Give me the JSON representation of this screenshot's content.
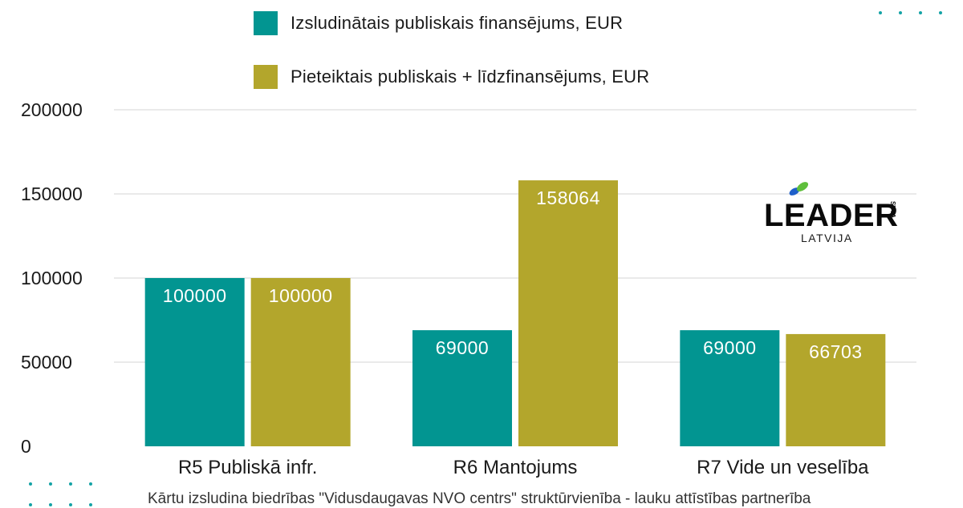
{
  "legend": [
    {
      "label": "Izsludinātais publiskais finansējums, EUR",
      "color": "#029591"
    },
    {
      "label": "Pieteiktais publiskais + līdzfinansējums, EUR",
      "color": "#b3a62c"
    }
  ],
  "logo": {
    "main": "LEADER",
    "sub": "LATVIJA",
    "badge": "SVVA"
  },
  "footnote": "Kārtu izsludina biedrības \"Vidusdaugavas NVO centrs\" struktūrvienība - lauku attīstības partnerība",
  "chart_data": {
    "type": "bar",
    "title": "",
    "xlabel": "",
    "ylabel": "",
    "categories": [
      "R5 Publiskā infr.",
      "R6 Mantojums",
      "R7 Vide un veselība"
    ],
    "series": [
      {
        "name": "Izsludinātais publiskais finansējums, EUR",
        "values": [
          100000,
          69000,
          69000
        ],
        "color": "#029591"
      },
      {
        "name": "Pieteiktais publiskais + līdzfinansējums, EUR",
        "values": [
          100000,
          158064,
          66703
        ],
        "color": "#b3a62c"
      }
    ],
    "ylim": [
      0,
      200000
    ],
    "yticks": [
      "0",
      "50000",
      "100000",
      "150000",
      "200000"
    ],
    "grid": true,
    "legend_position": "top",
    "data_labels": true
  }
}
